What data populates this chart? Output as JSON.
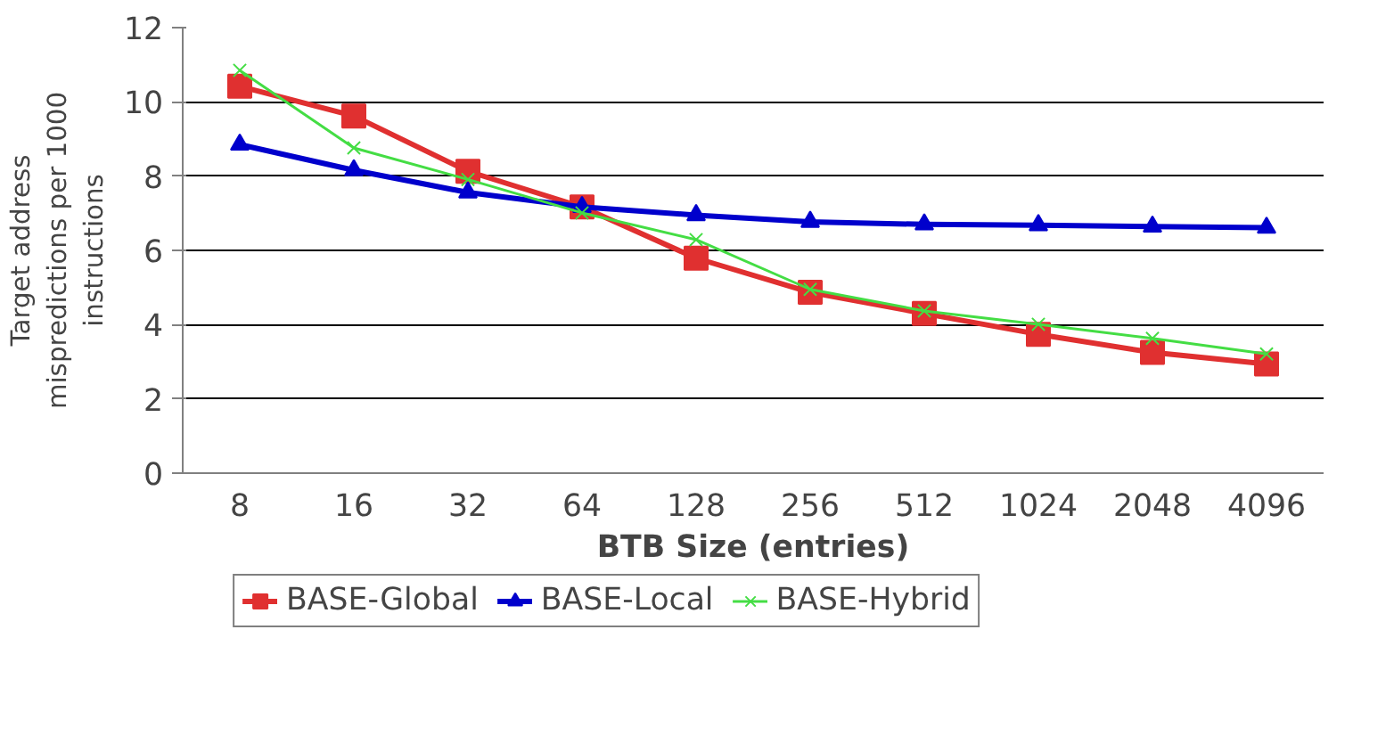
{
  "chart_data": {
    "type": "line",
    "xlabel": "BTB Size (entries)",
    "ylabel": "Target address mispredictions per 1000 instructions",
    "categories": [
      "8",
      "16",
      "32",
      "64",
      "128",
      "256",
      "512",
      "1024",
      "2048",
      "4096"
    ],
    "ylim": [
      0,
      12
    ],
    "yticks": [
      0,
      2,
      4,
      6,
      8,
      10,
      12
    ],
    "grid": "y",
    "legend": "bottom",
    "series": [
      {
        "name": "BASE-Global",
        "color": "#e03030",
        "marker": "square",
        "values": [
          10.42,
          9.62,
          8.13,
          7.17,
          5.79,
          4.87,
          4.3,
          3.74,
          3.25,
          2.94
        ]
      },
      {
        "name": "BASE-Local",
        "color": "#0000cc",
        "marker": "triangle",
        "values": [
          8.85,
          8.16,
          7.56,
          7.17,
          6.95,
          6.77,
          6.7,
          6.68,
          6.64,
          6.61
        ]
      },
      {
        "name": "BASE-Hybrid",
        "color": "#44dd44",
        "marker": "cross",
        "values": [
          10.85,
          8.76,
          7.91,
          7.01,
          6.29,
          4.95,
          4.37,
          4.01,
          3.63,
          3.21
        ]
      }
    ]
  }
}
